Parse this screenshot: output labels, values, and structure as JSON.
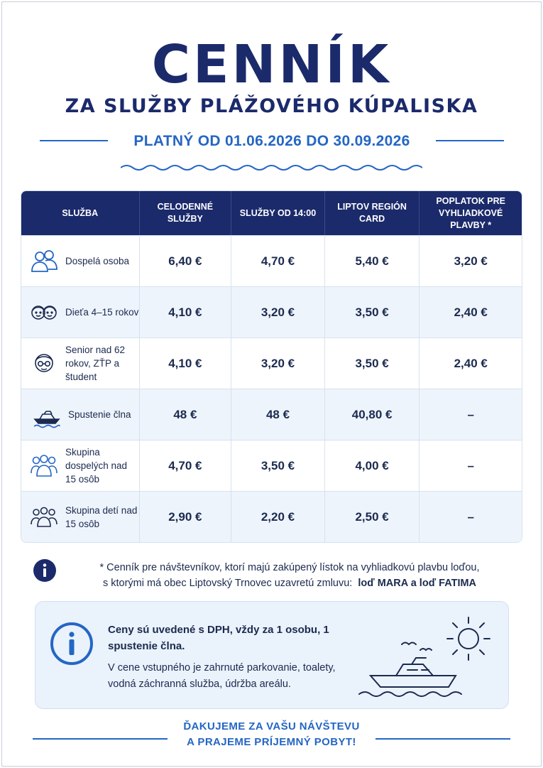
{
  "header": {
    "title": "CENNÍK",
    "subtitle": "ZA SLUŽBY PLÁŽOVÉHO KÚPALISKA",
    "validity": "PLATNÝ OD 01.06.2026 DO 30.09.2026"
  },
  "table": {
    "columns": [
      "SLUŽBA",
      "CELODENNÉ SLUŽBY",
      "SLUŽBY OD 14:00",
      "LIPTOV REGIÓN CARD",
      "POPLATOK PRE VYHLIADKOVÉ PLAVBY *"
    ],
    "rows": [
      {
        "icon": "adult-icon",
        "service": "Dospelá osoba",
        "full_day": "6,40 €",
        "from_14": "4,70 €",
        "liptov_card": "5,40 €",
        "cruise_fee": "3,20 €"
      },
      {
        "icon": "child-icon",
        "service": "Dieťa 4–15 rokov",
        "full_day": "4,10 €",
        "from_14": "3,20 €",
        "liptov_card": "3,50 €",
        "cruise_fee": "2,40 €"
      },
      {
        "icon": "senior-icon",
        "service": "Senior nad 62 rokov, ZŤP a študent",
        "full_day": "4,10 €",
        "from_14": "3,20 €",
        "liptov_card": "3,50 €",
        "cruise_fee": "2,40 €"
      },
      {
        "icon": "boat-icon",
        "service": "Spustenie člna",
        "full_day": "48 €",
        "from_14": "48 €",
        "liptov_card": "40,80 €",
        "cruise_fee": "–"
      },
      {
        "icon": "adult-group-icon",
        "service": "Skupina dospelých nad 15 osôb",
        "full_day": "4,70 €",
        "from_14": "3,50 €",
        "liptov_card": "4,00 €",
        "cruise_fee": "–"
      },
      {
        "icon": "child-group-icon",
        "service": "Skupina detí nad 15 osôb",
        "full_day": "2,90 €",
        "from_14": "2,20 €",
        "liptov_card": "2,50 €",
        "cruise_fee": "–"
      }
    ]
  },
  "note": {
    "line1": "* Cenník pre návštevníkov, ktorí majú zakúpený lístok na vyhliadkovú plavbu loďou,",
    "line2_prefix": "s ktorými má obec Liptovský Trnovec uzavretú zmluvu:",
    "line2_bold": "loď MARA a loď FATIMA"
  },
  "infobox": {
    "bold_text": "Ceny sú uvedené s DPH, vždy za 1 osobu, 1 spustenie člna.",
    "text": "V cene vstupného je zahrnuté parkovanie, toalety, vodná záchranná služba, údržba areálu."
  },
  "footer": {
    "line1": "ĎAKUJEME ZA VAŠU NÁVŠTEVU",
    "line2": "A PRAJEME PRÍJEMNÝ POBYT!"
  },
  "colors": {
    "navy": "#1b2a6b",
    "accent_blue": "#2466c4",
    "row_alt": "#eef4fb",
    "infobox_bg": "#eaf2fb"
  }
}
